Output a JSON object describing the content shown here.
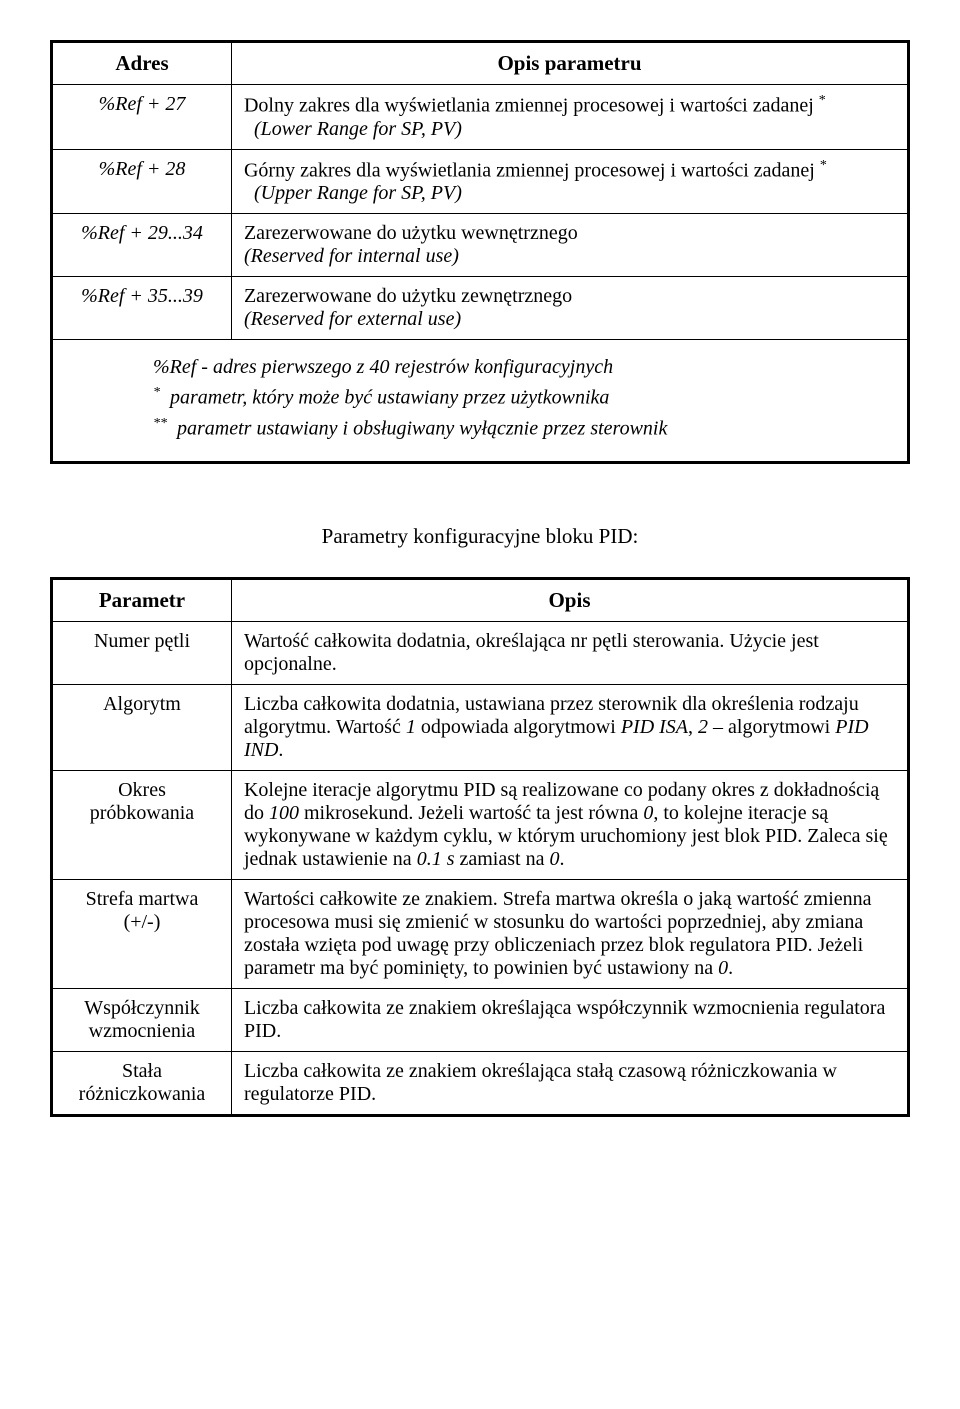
{
  "table1": {
    "headers": {
      "addr": "Adres",
      "desc": "Opis parametru"
    },
    "rows": [
      {
        "addr": "%Ref + 27",
        "desc_pl": "Dolny zakres dla wyświetlania zmiennej procesowej i wartości zadanej",
        "star": "*",
        "desc_en": "(Lower Range for SP, PV)"
      },
      {
        "addr": "%Ref + 28",
        "desc_pl": "Górny zakres dla wyświetlania zmiennej procesowej i wartości zadanej",
        "star": "*",
        "desc_en": "(Upper Range for SP, PV)"
      },
      {
        "addr": "%Ref + 29...34",
        "desc_pl": "Zarezerwowane do użytku wewnętrznego",
        "desc_en": "(Reserved for internal use)"
      },
      {
        "addr": "%Ref + 35...39",
        "desc_pl": "Zarezerwowane do użytku zewnętrznego",
        "desc_en": "(Reserved for external use)"
      }
    ],
    "footnotes": {
      "line1": "%Ref - adres pierwszego z 40 rejestrów konfiguracyjnych",
      "star1": "*",
      "line2": "parametr, który może być ustawiany przez użytkownika",
      "star2": "**",
      "line3": "parametr ustawiany i obsługiwany wyłącznie przez sterownik"
    }
  },
  "section_title": "Parametry konfiguracyjne bloku PID:",
  "table2": {
    "headers": {
      "param": "Parametr",
      "desc": "Opis"
    },
    "rows": [
      {
        "param": "Numer pętli",
        "desc": "Wartość całkowita dodatnia, określająca nr pętli sterowania. Użycie jest opcjonalne."
      },
      {
        "param": "Algorytm",
        "desc_pre": "Liczba całkowita dodatnia, ustawiana przez sterownik dla określenia rodzaju algorytmu. Wartość ",
        "i1": "1",
        "mid1": " odpowiada algorytmowi ",
        "i2": "PID ISA",
        "mid2": ", ",
        "i3": "2",
        "mid3": " – algorytmowi ",
        "i4": "PID IND",
        "post": "."
      },
      {
        "param": "Okres próbkowania",
        "desc_pre": "Kolejne iteracje algorytmu PID są realizowane co podany okres z dokładnością do ",
        "i1": "100",
        "mid1": " mikrosekund. Jeżeli wartość ta jest równa ",
        "i2": "0",
        "mid2": ", to kolejne iteracje są wykonywane w każdym cyklu, w którym uruchomiony jest blok PID. Zaleca się jednak ustawienie na ",
        "i3": "0.1 s",
        "mid3": " zamiast na ",
        "i4": "0",
        "post": "."
      },
      {
        "param": "Strefa martwa (+/-)",
        "desc_pre": "Wartości całkowite ze znakiem. Strefa martwa określa o jaką wartość zmienna procesowa musi się zmienić w stosunku do wartości poprzedniej, aby zmiana została wzięta pod uwagę przy obliczeniach przez blok regulatora PID. Jeżeli parametr ma być pominięty, to powinien być ustawiony na ",
        "i1": "0",
        "post": "."
      },
      {
        "param": "Współczynnik wzmocnienia",
        "desc": "Liczba całkowita ze znakiem określająca współczynnik wzmocnienia regulatora PID."
      },
      {
        "param": "Stała różniczkowania",
        "desc": "Liczba całkowita ze znakiem określająca stałą czasową różniczkowania w regulatorze PID."
      }
    ]
  }
}
